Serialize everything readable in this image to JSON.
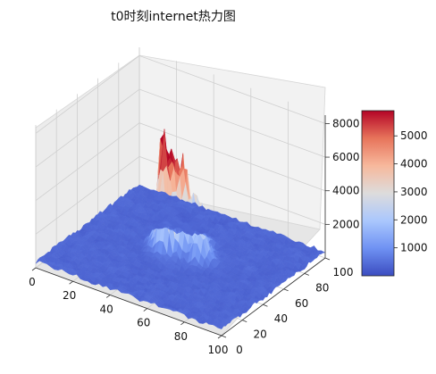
{
  "chart_data": {
    "type": "surface3d",
    "title": "t0时刻internet热力图",
    "x_ticks": [
      "0",
      "20",
      "40",
      "60",
      "80",
      "100"
    ],
    "y_ticks": [
      "0",
      "20",
      "40",
      "60",
      "80",
      "100"
    ],
    "z_ticks": [
      "2000",
      "4000",
      "6000",
      "8000"
    ],
    "colorbar_ticks": [
      "1000",
      "2000",
      "3000",
      "4000",
      "5000"
    ],
    "colormap": "coolwarm",
    "colormap_stops": [
      "#3b4cc0",
      "#6f92f3",
      "#aac7fd",
      "#dddcdc",
      "#f7b89c",
      "#e7745b",
      "#b40426"
    ],
    "xlim": [
      0,
      100
    ],
    "ylim": [
      0,
      100
    ],
    "zlim": [
      0,
      8500
    ],
    "color_range": [
      0,
      5900
    ],
    "grid": true,
    "peak_regions": [
      {
        "x": 38,
        "y": 55,
        "z": 7600
      },
      {
        "x": 42,
        "y": 50,
        "z": 6200
      },
      {
        "x": 48,
        "y": 54,
        "z": 5200
      },
      {
        "x": 45,
        "y": 60,
        "z": 4500
      },
      {
        "x": 55,
        "y": 58,
        "z": 3600
      },
      {
        "x": 50,
        "y": 66,
        "z": 3200
      },
      {
        "x": 60,
        "y": 52,
        "z": 2500
      },
      {
        "x": 35,
        "y": 62,
        "z": 2300
      }
    ]
  }
}
